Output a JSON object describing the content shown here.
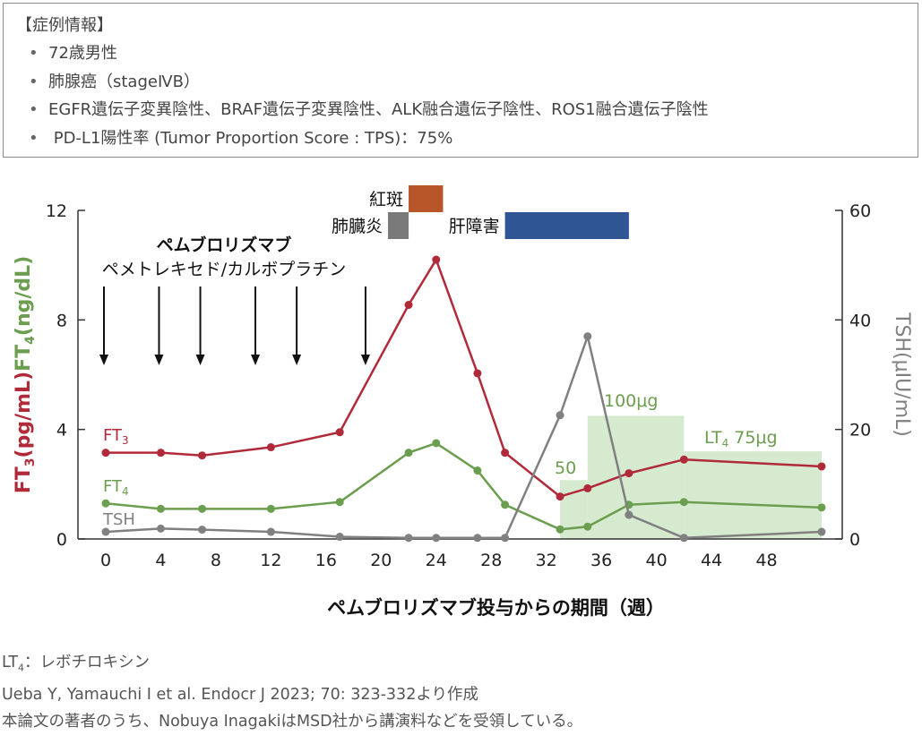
{
  "case_box": {
    "title": "【症例情報】",
    "items": [
      "72歳男性",
      "肺腺癌（stageⅣB）",
      "EGFR遺伝子変異陰性、BRAF遺伝子変異陰性、ALK融合遺伝子陰性、ROS1融合遺伝子陰性",
      " PD-L1陽性率 (Tumor Proportion Score : TPS)：75%"
    ]
  },
  "chart_data": {
    "type": "line",
    "xlabel": "ペムブロリズマブ投与からの期間（週）",
    "x_ticks": [
      0,
      4,
      8,
      12,
      16,
      20,
      24,
      28,
      32,
      36,
      40,
      44,
      48
    ],
    "xlim": [
      -1,
      53
    ],
    "y_left": {
      "label_ft3": "FT",
      "label_ft3_sub": "3",
      "label_ft3_unit": "(pg/mL)",
      "label_ft4": "FT",
      "label_ft4_sub": "4",
      "label_ft4_unit": "(ng/dL)",
      "ticks": [
        0,
        4,
        8,
        12
      ],
      "lim": [
        0,
        12
      ]
    },
    "y_right": {
      "label": "TSH(μIU/mL)",
      "ticks": [
        0,
        20,
        40,
        60
      ],
      "lim": [
        0,
        60
      ]
    },
    "series": [
      {
        "name": "FT",
        "name_sub": "3",
        "axis": "left",
        "color": "#b02a3a",
        "x": [
          0,
          4,
          7,
          12,
          17,
          22,
          24,
          27,
          29,
          33,
          35,
          38,
          42,
          52
        ],
        "y": [
          3.15,
          3.15,
          3.05,
          3.35,
          3.9,
          8.55,
          10.2,
          6.05,
          3.15,
          1.55,
          1.85,
          2.4,
          2.9,
          2.65
        ]
      },
      {
        "name": "FT",
        "name_sub": "4",
        "axis": "left",
        "color": "#6b9e4e",
        "x": [
          0,
          4,
          7,
          12,
          17,
          22,
          24,
          27,
          29,
          33,
          35,
          38,
          42,
          52
        ],
        "y": [
          1.3,
          1.1,
          1.1,
          1.1,
          1.35,
          3.15,
          3.5,
          2.5,
          1.25,
          0.35,
          0.45,
          1.25,
          1.35,
          1.15
        ]
      },
      {
        "name": "TSH",
        "axis": "right",
        "color": "#808080",
        "x": [
          0,
          4,
          7,
          12,
          17,
          22,
          24,
          27,
          29,
          33,
          35,
          38,
          42,
          52
        ],
        "y": [
          1.3,
          1.9,
          1.7,
          1.3,
          0.4,
          0.2,
          0.2,
          0.2,
          0.2,
          22.6,
          37,
          4.4,
          0.2,
          1.3
        ]
      }
    ],
    "dosing": {
      "drug_label": "ペムブロリズマブ",
      "combo_label": "ペメトレキセド/カルボプラチン",
      "weeks": [
        0,
        4,
        7,
        11,
        14,
        19
      ]
    },
    "lt4": {
      "color": "#d6ead0",
      "regions": [
        {
          "x0": 33,
          "x1": 35,
          "y": 2.15,
          "label": "50"
        },
        {
          "x0": 35,
          "x1": 42,
          "y": 4.5,
          "label": "100μg"
        },
        {
          "x0": 42,
          "x1": 52,
          "y": 3.2,
          "label_prefix": "LT",
          "label_sub": "4",
          "label_suffix": " 75μg"
        }
      ]
    },
    "events": [
      {
        "label": "紅斑",
        "x0": 22,
        "x1": 24.5,
        "row": 0,
        "color": "#b8562a"
      },
      {
        "label": "肺臓炎",
        "x0": 20.5,
        "x1": 22,
        "row": 1,
        "color": "#7a7a7a"
      },
      {
        "label": "肝障害",
        "x0": 29,
        "x1": 38,
        "row": 1,
        "color": "#2f5594"
      }
    ]
  },
  "footer": {
    "lt4_note_prefix": "LT",
    "lt4_note_sub": "4",
    "lt4_note_suffix": "：レボチロキシン",
    "citation": "Ueba Y, Yamauchi I et al. Endocr J 2023; 70: 323-332より作成",
    "disclosure": "本論文の著者のうち、Nobuya InagakiはMSD社から講演料などを受領している。"
  }
}
